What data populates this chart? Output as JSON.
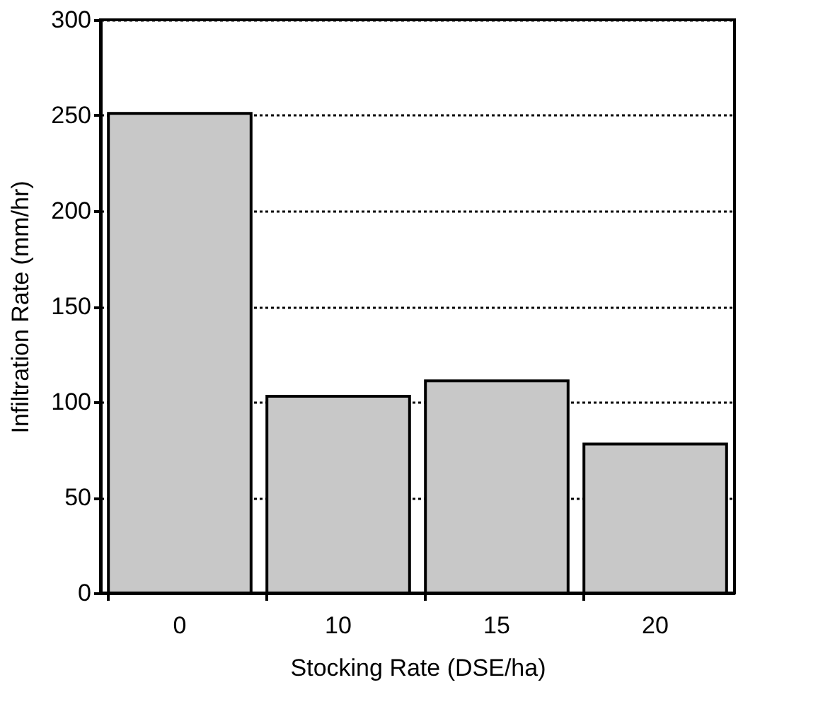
{
  "chart_data": {
    "type": "bar",
    "xlabel": "Stocking Rate  (DSE/ha)",
    "ylabel": "Infiltration Rate (mm/hr)",
    "categories": [
      "0",
      "10",
      "15",
      "20"
    ],
    "values": [
      251,
      103,
      111,
      78
    ],
    "color": "#c8c8c8",
    "ylim": [
      0,
      300
    ],
    "yticks": [
      0,
      50,
      100,
      150,
      200,
      250,
      300
    ],
    "grid": "y"
  }
}
